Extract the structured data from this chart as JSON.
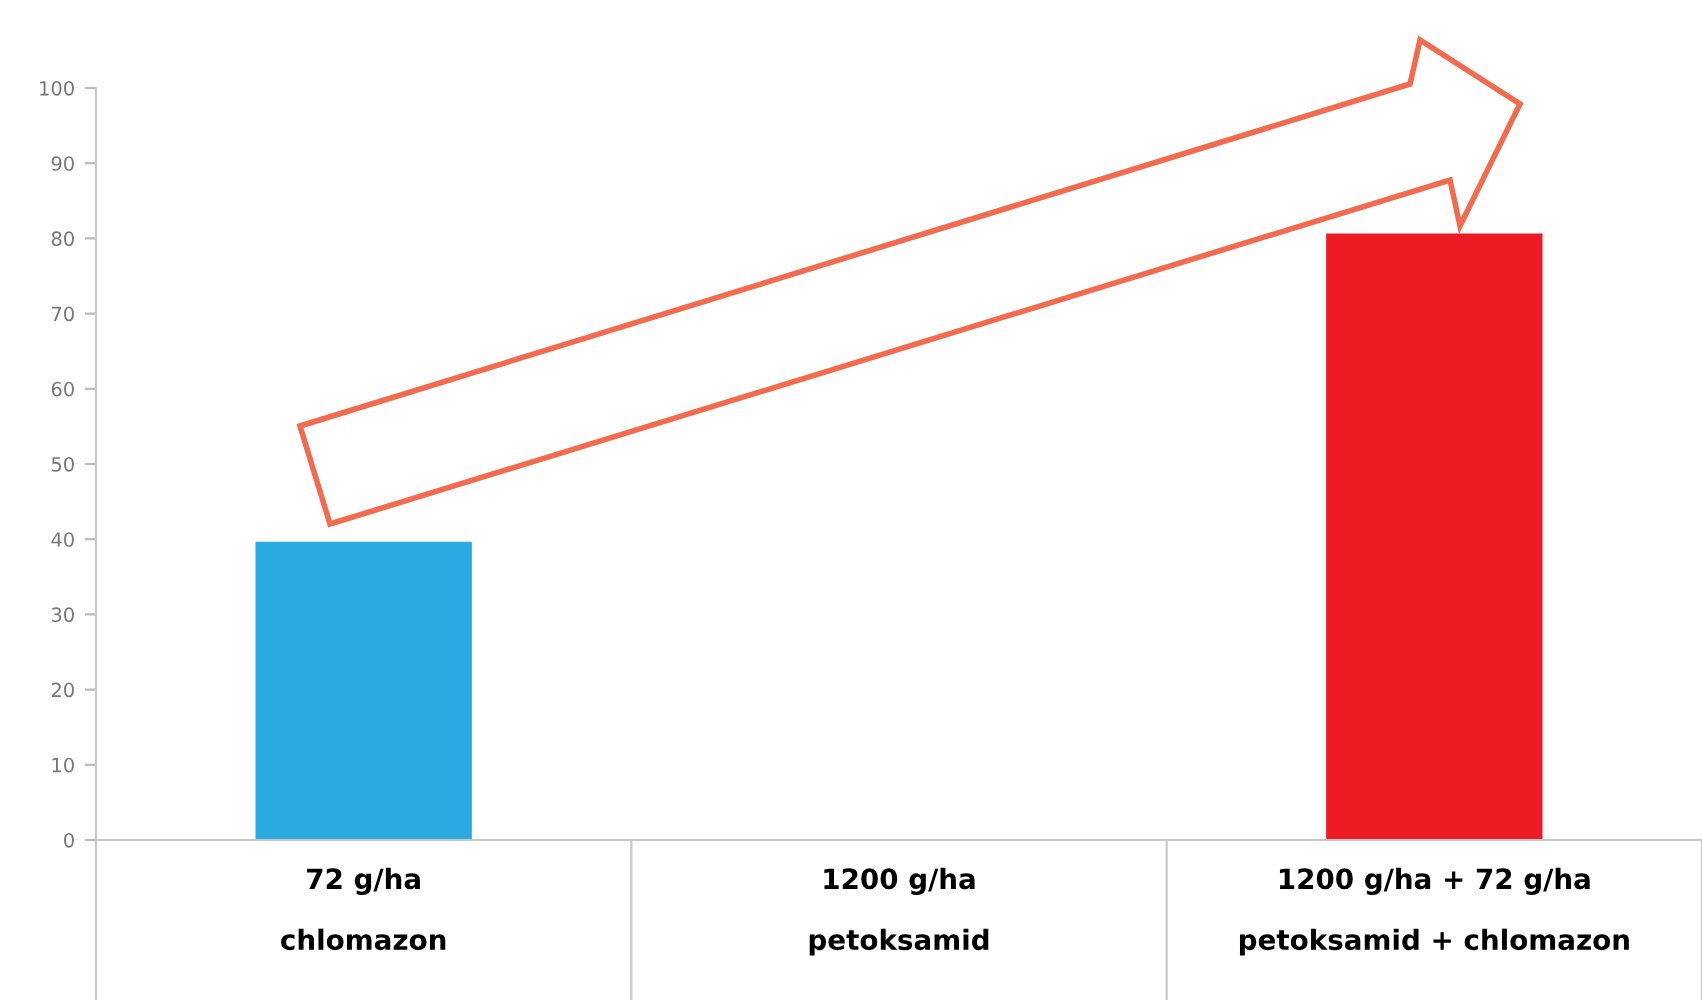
{
  "chart_data": {
    "type": "bar",
    "categories": [
      "72 g/ha\nchlomazon",
      "1200 g/ha\npetoksamid",
      "1200 g/ha + 72 g/ha\npetoksamid + chlomazon"
    ],
    "values": [
      39.5,
      0,
      80.5
    ],
    "colors": [
      "#29abe2",
      "#ed1c24",
      "#ed1c24"
    ],
    "ylim": [
      0,
      100
    ],
    "yticks": [
      0,
      10,
      20,
      30,
      40,
      50,
      60,
      70,
      80,
      90,
      100
    ],
    "grid": false,
    "legend": false
  }
}
